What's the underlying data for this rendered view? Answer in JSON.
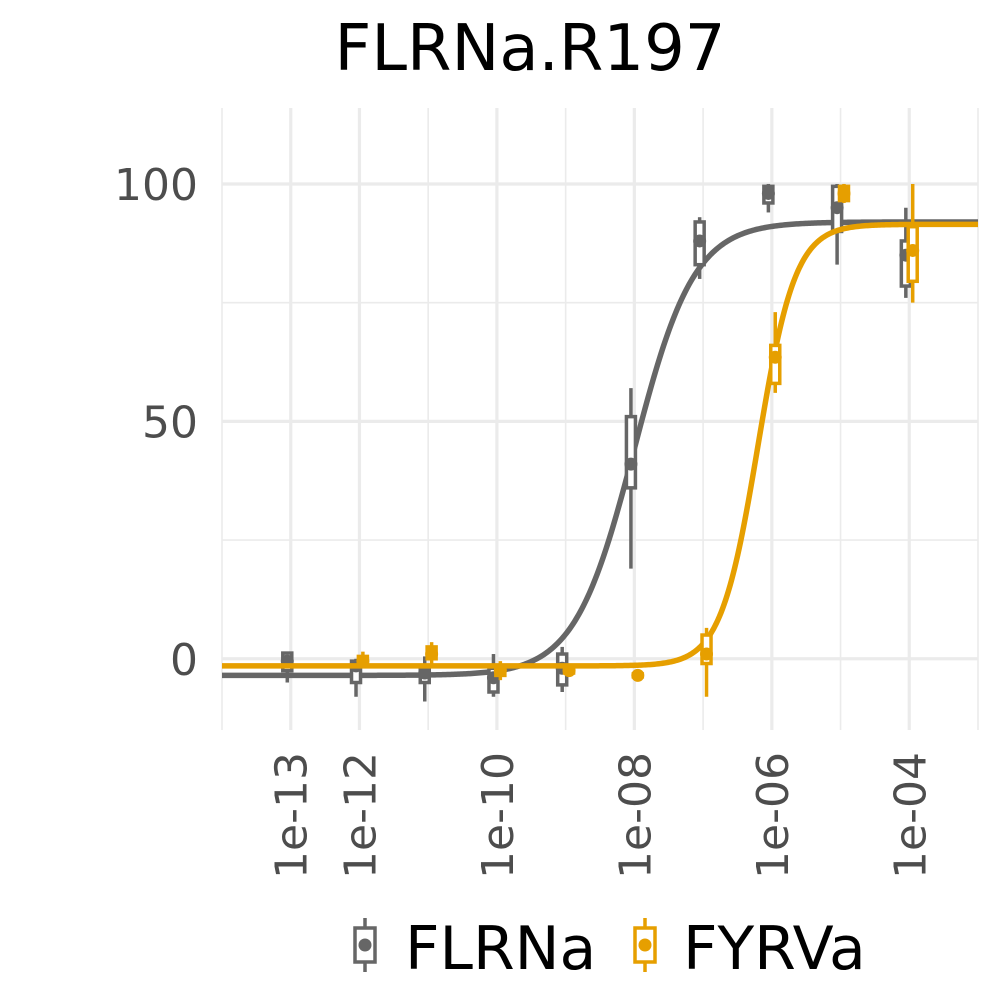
{
  "chart_data": {
    "type": "scatter",
    "title": "FLRNa.R197",
    "xlabel": "",
    "ylabel": "",
    "x_scale": "log10",
    "xlim": [
      1e-14,
      0.001
    ],
    "ylim": [
      -15,
      116
    ],
    "x_ticks": [
      {
        "value": 1e-13,
        "label": "1e-13"
      },
      {
        "value": 1e-12,
        "label": "1e-12"
      },
      {
        "value": 1e-10,
        "label": "1e-10"
      },
      {
        "value": 1e-08,
        "label": "1e-08"
      },
      {
        "value": 1e-06,
        "label": "1e-06"
      },
      {
        "value": 0.0001,
        "label": "1e-04"
      }
    ],
    "y_ticks": [
      {
        "value": 0,
        "label": "0"
      },
      {
        "value": 50,
        "label": "50"
      },
      {
        "value": 100,
        "label": "100"
      }
    ],
    "grid": true,
    "legend_position": "bottom",
    "series": [
      {
        "name": "FLRNa",
        "color": "#666666",
        "fit": {
          "model": "4PL",
          "bottom": -3.5,
          "top": 92,
          "log_ec50": -8.0,
          "hill": 1.0
        },
        "points": [
          {
            "x": 1e-13,
            "mean": -0.5,
            "lo": -5,
            "hi": 1.5,
            "q1": -2.5,
            "q3": 1.2
          },
          {
            "x": 1e-12,
            "mean": -1.5,
            "lo": -8,
            "hi": 0,
            "q1": -5,
            "q3": -0.5
          },
          {
            "x": 1e-11,
            "mean": -3,
            "lo": -9,
            "hi": 0.5,
            "q1": -5,
            "q3": -1.5
          },
          {
            "x": 1e-10,
            "mean": -4,
            "lo": -8,
            "hi": 1,
            "q1": -7,
            "q3": -2
          },
          {
            "x": 1e-09,
            "mean": -2,
            "lo": -7,
            "hi": 2.5,
            "q1": -5.5,
            "q3": 1
          },
          {
            "x": 1e-08,
            "mean": 41,
            "lo": 19,
            "hi": 57,
            "q1": 36,
            "q3": 51
          },
          {
            "x": 1e-07,
            "mean": 88,
            "lo": 80,
            "hi": 93,
            "q1": 83,
            "q3": 92
          },
          {
            "x": 1e-06,
            "mean": 98,
            "lo": 94,
            "hi": 100,
            "q1": 96,
            "q3": 99.5
          },
          {
            "x": 1e-05,
            "mean": 95,
            "lo": 83,
            "hi": 100,
            "q1": 90,
            "q3": 99.5
          },
          {
            "x": 0.0001,
            "mean": 85,
            "lo": 76,
            "hi": 95,
            "q1": 78.5,
            "q3": 88
          }
        ]
      },
      {
        "name": "FYRVa",
        "color": "#E69F00",
        "fit": {
          "model": "4PL",
          "bottom": -1.5,
          "top": 91.5,
          "log_ec50": -6.2,
          "hill": 1.6
        },
        "points": [
          {
            "x": 1e-12,
            "mean": -0.5,
            "lo": -2,
            "hi": 1.5,
            "q1": -1.5,
            "q3": 0.5
          },
          {
            "x": 1e-11,
            "mean": 1,
            "lo": -1,
            "hi": 3.5,
            "q1": 0,
            "q3": 2.5
          },
          {
            "x": 1e-10,
            "mean": -2.5,
            "lo": -4.5,
            "hi": -0.5,
            "q1": -3.5,
            "q3": -1.5
          },
          {
            "x": 1e-09,
            "mean": -2.5,
            "lo": -3.5,
            "hi": -1.5,
            "q1": -3,
            "q3": -2
          },
          {
            "x": 1e-08,
            "mean": -3.5,
            "lo": -4,
            "hi": -3,
            "q1": -3.8,
            "q3": -3.2
          },
          {
            "x": 1e-07,
            "mean": 1,
            "lo": -8,
            "hi": 6.5,
            "q1": -1,
            "q3": 5
          },
          {
            "x": 1e-06,
            "mean": 63.5,
            "lo": 56,
            "hi": 73,
            "q1": 58,
            "q3": 66
          },
          {
            "x": 1e-05,
            "mean": 98,
            "lo": 96,
            "hi": 100,
            "q1": 96.5,
            "q3": 99.5
          },
          {
            "x": 0.0001,
            "mean": 86,
            "lo": 75,
            "hi": 100,
            "q1": 79.5,
            "q3": 91
          }
        ]
      }
    ]
  }
}
